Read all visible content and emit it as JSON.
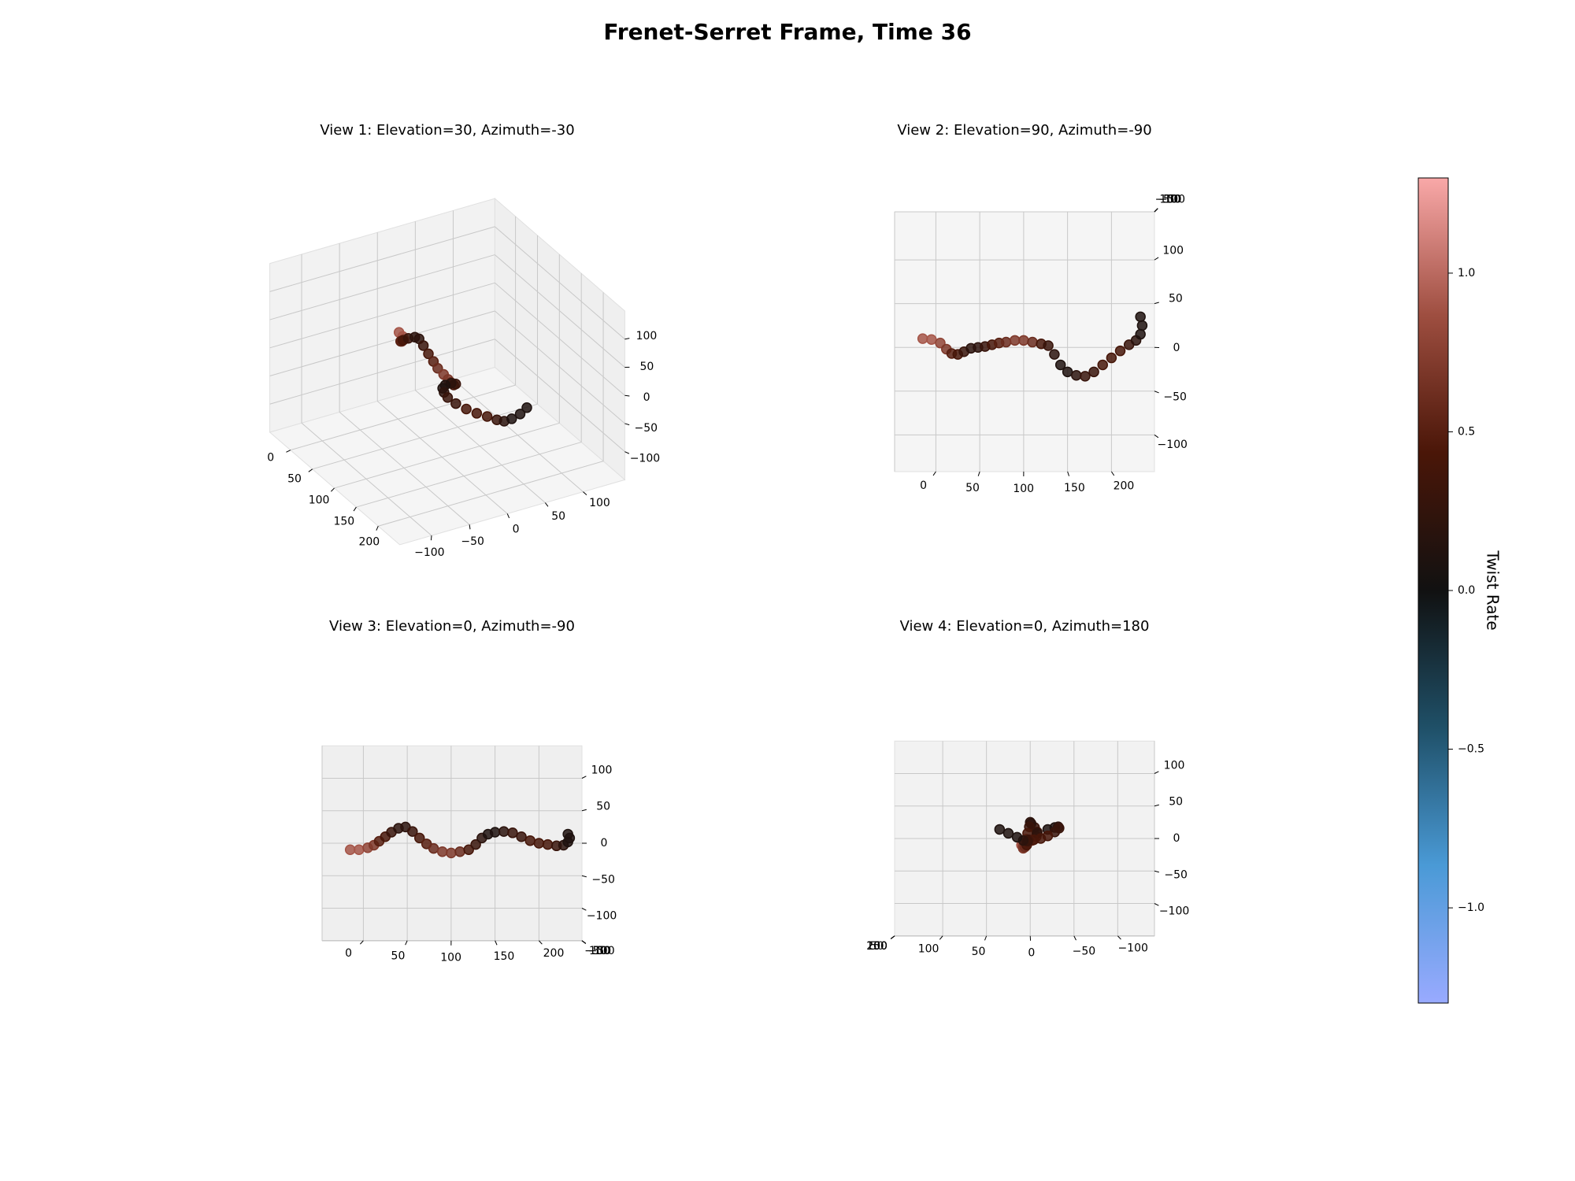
{
  "chart_data": {
    "type": "scatter3d",
    "title": "Frenet-Serret Frame, Time 36",
    "x": [
      -15,
      -5,
      5,
      12,
      18,
      25,
      32,
      40,
      48,
      56,
      64,
      72,
      80,
      90,
      100,
      110,
      120,
      128,
      135,
      142,
      150,
      160,
      170,
      180,
      190,
      200,
      210,
      220,
      228,
      233,
      235,
      233
    ],
    "y": [
      10,
      9,
      5,
      -2,
      -7,
      -8,
      -5,
      -1,
      0,
      1,
      3,
      5,
      6,
      8,
      8,
      6,
      4,
      2,
      -8,
      -20,
      -28,
      -32,
      -33,
      -28,
      -20,
      -12,
      -4,
      3,
      8,
      15,
      25,
      35
    ],
    "z": [
      -10,
      -10,
      -7,
      -3,
      3,
      10,
      17,
      23,
      25,
      18,
      8,
      -1,
      -8,
      -13,
      -15,
      -13,
      -10,
      -2,
      8,
      14,
      17,
      18,
      16,
      10,
      4,
      0,
      -2,
      -4,
      -3,
      2,
      8,
      14
    ],
    "twist": [
      0.9,
      0.9,
      0.8,
      0.7,
      0.5,
      0.4,
      0.3,
      0.2,
      0.2,
      0.3,
      0.4,
      0.5,
      0.6,
      0.7,
      0.7,
      0.6,
      0.4,
      0.3,
      0.2,
      0.1,
      0.1,
      0.2,
      0.3,
      0.3,
      0.4,
      0.4,
      0.4,
      0.3,
      0.2,
      0.1,
      0.1,
      0.1
    ],
    "xlim": [
      -47,
      249
    ],
    "ylim": [
      -142,
      155
    ],
    "zlim": [
      -150,
      150
    ],
    "xticks": [
      0,
      50,
      100,
      150,
      200
    ],
    "yticks": [
      {
        "value": -100,
        "label": "−100"
      },
      {
        "value": -50,
        "label": "−50"
      },
      0,
      50,
      100
    ],
    "zticks": [
      {
        "value": -100,
        "label": "−100"
      },
      {
        "value": -50,
        "label": "−50"
      },
      0,
      50,
      100
    ],
    "views": [
      {
        "title": "View 1: Elevation=30, Azimuth=-30",
        "elev": 30,
        "azim": -30
      },
      {
        "title": "View 2: Elevation=90, Azimuth=-90",
        "elev": 90,
        "azim": -90
      },
      {
        "title": "View 3: Elevation=0, Azimuth=-90",
        "elev": 0,
        "azim": -90
      },
      {
        "title": "View 4: Elevation=0, Azimuth=180",
        "elev": 0,
        "azim": 180
      }
    ],
    "colorbar": {
      "label": "Twist Rate",
      "clim": [
        -1.3,
        1.3
      ],
      "ticks": [
        {
          "value": -1,
          "label": "−1.0"
        },
        {
          "value": -0.5,
          "label": "−0.5"
        },
        {
          "value": 0,
          "label": "0.0"
        },
        {
          "value": 0.5,
          "label": "0.5"
        },
        {
          "value": 1,
          "label": "1.0"
        }
      ],
      "colormap": [
        "#99aaff",
        "#4a9ad6",
        "#1f5068",
        "#111111",
        "#4a1608",
        "#9e4e40",
        "#f9a8a8"
      ]
    }
  }
}
